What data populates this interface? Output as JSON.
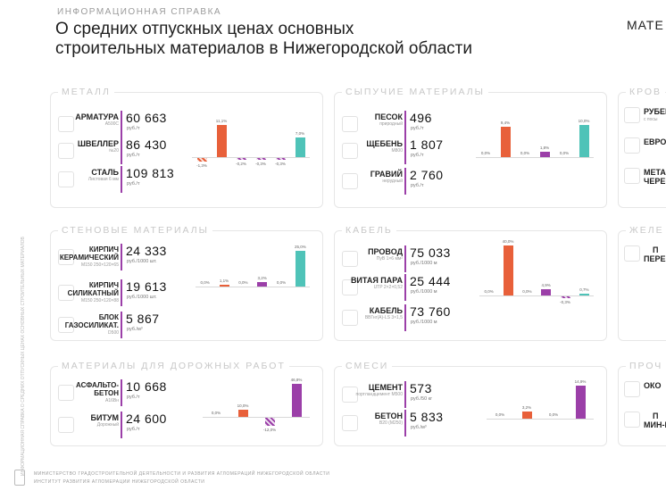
{
  "header": {
    "kicker": "ИНФОРМАЦИОННАЯ СПРАВКА",
    "title_line1": "О средних отпускных ценах основных",
    "title_line2": "строительных материалов в Нижегородской области",
    "brand": "МАТЕ"
  },
  "side_note": "ИНФОРМАЦИОННАЯ СПРАВКА О СРЕДНИХ ОТПУСКНЫХ ЦЕНАХ ОСНОВНЫХ СТРОИТЕЛЬНЫХ МАТЕРИАЛОВ",
  "colors": {
    "up": "#e8603a",
    "down": "#9b3fa8",
    "flat": "#4fc3b8",
    "accent_line": "#9b3fa8"
  },
  "panels": {
    "metal": {
      "title": "МЕТАЛЛ",
      "items": [
        {
          "name": "АРМАТУРА",
          "sub": "А500С",
          "price": "60 663",
          "unit": "руб./т"
        },
        {
          "name": "ШВЕЛЛЕР",
          "sub": "№20",
          "price": "86 430",
          "unit": "руб./т"
        },
        {
          "name": "СТАЛЬ",
          "sub": "Листовая 6 мм",
          "price": "109 813",
          "unit": "руб./т"
        }
      ],
      "chart_data": {
        "type": "bar",
        "values": [
          -1.3,
          11.1,
          -0.2,
          -0.3,
          -0.3,
          7.0
        ],
        "labels": [
          "-1,3%",
          "11,1%",
          "-0,2%",
          "-0,3%",
          "-0,3%",
          "7,0%"
        ]
      }
    },
    "bulk": {
      "title": "СЫПУЧИЕ МАТЕРИАЛЫ",
      "items": [
        {
          "name": "ПЕСОК",
          "sub": "природный",
          "price": "496",
          "unit": "руб./т"
        },
        {
          "name": "ЩЕБЕНЬ",
          "sub": "М800",
          "price": "1 807",
          "unit": "руб./т"
        },
        {
          "name": "ГРАВИЙ",
          "sub": "нерудный",
          "price": "2 760",
          "unit": "руб./т"
        }
      ],
      "chart_data": {
        "type": "bar",
        "values": [
          0.0,
          9.4,
          0.0,
          1.8,
          0.0,
          10.0
        ],
        "labels": [
          "0,0%",
          "9,4%",
          "0,0%",
          "1,8%",
          "0,0%",
          "10,0%"
        ]
      }
    },
    "walls": {
      "title": "СТЕНОВЫЕ МАТЕРИАЛЫ",
      "items": [
        {
          "name_lines": [
            "КИРПИЧ",
            "КЕРАМИЧЕСКИЙ"
          ],
          "sub": "М150 250×120×65",
          "price": "24 333",
          "unit": "руб./1000 шт."
        },
        {
          "name_lines": [
            "КИРПИЧ",
            "СИЛИКАТНЫЙ"
          ],
          "sub": "М150 250×120×88",
          "price": "19 613",
          "unit": "руб./1000 шт."
        },
        {
          "name_lines": [
            "БЛОК",
            "ГАЗОСИЛИКАТ."
          ],
          "sub": "D500",
          "price": "5 867",
          "unit": "руб./м³"
        }
      ],
      "chart_data": {
        "type": "bar",
        "values": [
          0.0,
          1.1,
          0.0,
          3.2,
          0.0,
          25.0
        ],
        "labels": [
          "0,0%",
          "1,1%",
          "0,0%",
          "3,2%",
          "0,0%",
          "25,0%"
        ]
      }
    },
    "cable": {
      "title": "КАБЕЛЬ",
      "items": [
        {
          "name": "ПРОВОД",
          "sub": "ПуВ 1×6 мм²",
          "price": "75 033",
          "unit": "руб./1000 м"
        },
        {
          "name": "ВИТАЯ ПАРА",
          "sub": "UTP 2×2×0,52",
          "price": "25 444",
          "unit": "руб./1000 м"
        },
        {
          "name": "КАБЕЛЬ",
          "sub": "ВВГнг(А)-LS 3×1,5",
          "price": "73 760",
          "unit": "руб./1000 м"
        }
      ],
      "chart_data": {
        "type": "bar",
        "values": [
          0.0,
          40.0,
          0.0,
          4.9,
          -0.3,
          0.7
        ],
        "labels": [
          "0,0%",
          "40,0%",
          "0,0%",
          "4,9%",
          "-0,3%",
          "0,7%"
        ]
      }
    },
    "road": {
      "title": "МАТЕРИАЛЫ ДЛЯ ДОРОЖНЫХ РАБОТ",
      "items": [
        {
          "name_lines": [
            "АСФАЛЬТО-",
            "БЕТОН"
          ],
          "sub": "А16Вн",
          "price": "10 668",
          "unit": "руб./т"
        },
        {
          "name": "БИТУМ",
          "sub": "Дорожный",
          "price": "24 600",
          "unit": "руб./т"
        }
      ],
      "chart_data": {
        "type": "bar",
        "values": [
          0.0,
          10.0,
          -12.0,
          46.8
        ],
        "labels": [
          "0,0%",
          "10,0%",
          "-12,0%",
          "46,8%"
        ]
      }
    },
    "mixes": {
      "title": "СМЕСИ",
      "items": [
        {
          "name": "ЦЕМЕНТ",
          "sub": "портландцемент М500",
          "price": "573",
          "unit": "руб./50 кг"
        },
        {
          "name": "БЕТОН",
          "sub": "В20 (М250)",
          "price": "5 833",
          "unit": "руб./м³"
        }
      ],
      "chart_data": {
        "type": "bar",
        "values": [
          0.0,
          3.2,
          0.0,
          14.9
        ],
        "labels": [
          "0,0%",
          "3,2%",
          "0,0%",
          "14,9%"
        ]
      }
    },
    "roof": {
      "title": "КРОВ",
      "items": [
        {
          "name": "РУБЕР",
          "sub": "с посы"
        },
        {
          "name": "ЕВРОШ"
        },
        {
          "name_lines": [
            "МЕТА",
            "ЧЕРЕП"
          ]
        }
      ]
    },
    "concrete": {
      "title": "ЖЕЛЕ",
      "items": [
        {
          "name_lines": [
            "П",
            "ПЕРЕКР"
          ]
        }
      ]
    },
    "other": {
      "title": "ПРОЧ",
      "items": [
        {
          "name": "ОКО"
        },
        {
          "name_lines": [
            "П",
            "МИН-ВА"
          ]
        }
      ]
    }
  },
  "footer": {
    "line1": "МИНИСТЕРСТВО ГРАДОСТРОИТЕЛЬНОЙ ДЕЯТЕЛЬНОСТИ И РАЗВИТИЯ АГЛОМЕРАЦИЙ НИЖЕГОРОДСКОЙ ОБЛАСТИ",
    "line2": "ИНСТИТУТ РАЗВИТИЯ АГЛОМЕРАЦИИ НИЖЕГОРОДСКОЙ ОБЛАСТИ"
  }
}
